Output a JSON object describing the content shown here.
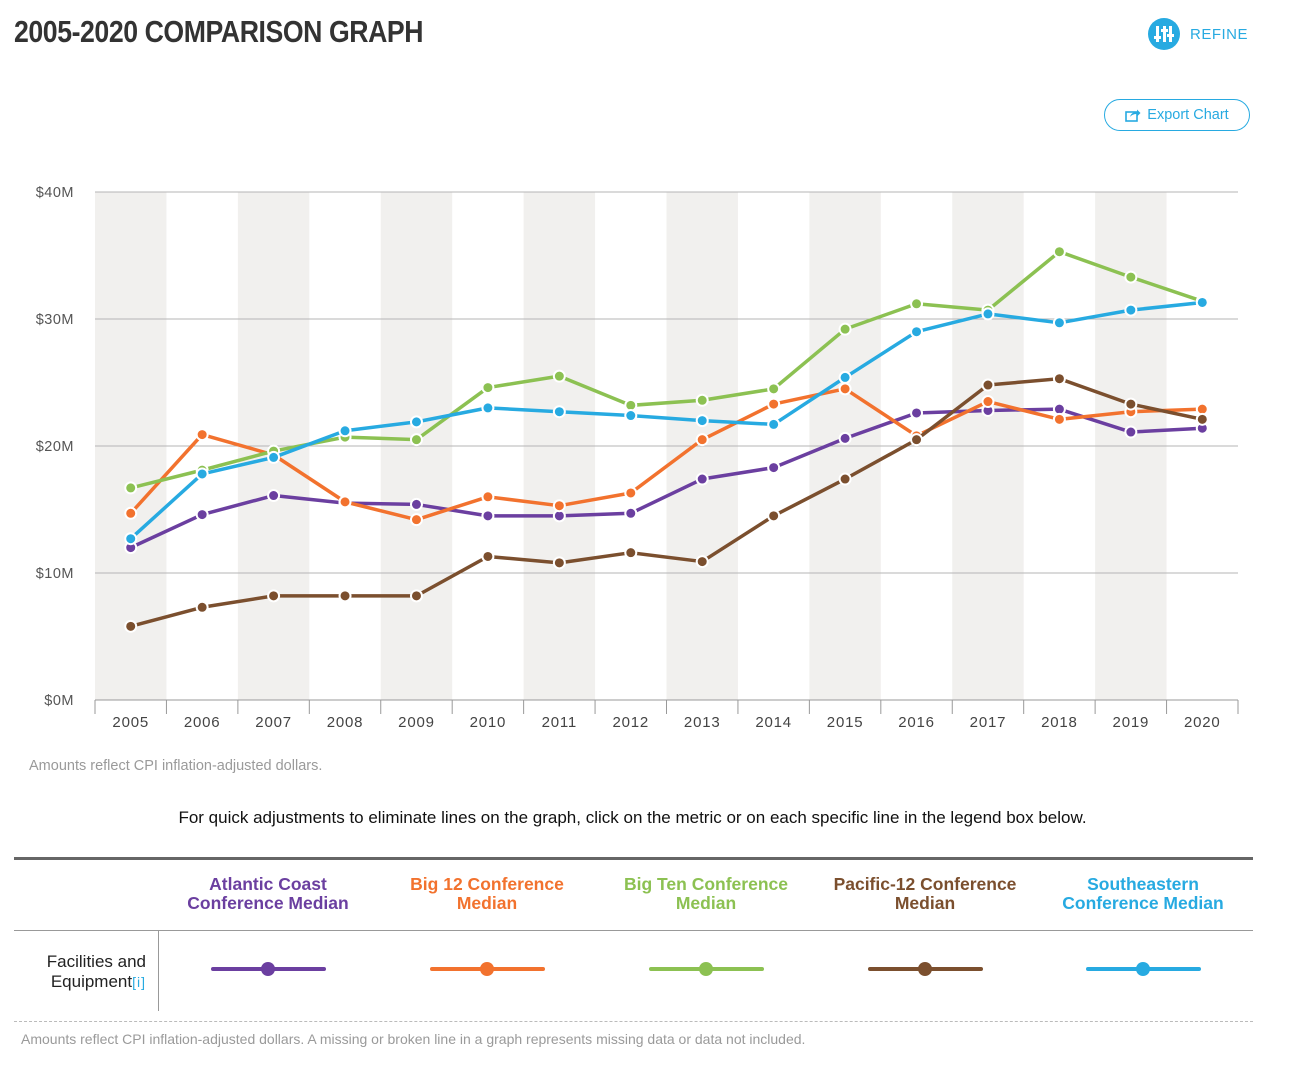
{
  "title": "2005-2020 COMPARISON GRAPH",
  "refine_label": "REFINE",
  "export_label": "Export Chart",
  "chart_data": {
    "type": "line",
    "x": [
      "2005",
      "2006",
      "2007",
      "2008",
      "2009",
      "2010",
      "2011",
      "2012",
      "2013",
      "2014",
      "2015",
      "2016",
      "2017",
      "2018",
      "2019",
      "2020"
    ],
    "ylim": [
      0,
      40
    ],
    "yticks": [
      "$0M",
      "$10M",
      "$20M",
      "$30M",
      "$40M"
    ],
    "grid": true,
    "series": [
      {
        "name": "Atlantic Coast Conference Median",
        "color": "#6b3fa0",
        "values": [
          12.0,
          14.6,
          16.1,
          15.5,
          15.4,
          14.5,
          14.5,
          14.7,
          17.4,
          18.3,
          20.6,
          22.6,
          22.8,
          22.9,
          21.1,
          21.4
        ]
      },
      {
        "name": "Big 12 Conference Median",
        "color": "#f2722e",
        "values": [
          14.7,
          20.9,
          19.3,
          15.6,
          14.2,
          16.0,
          15.3,
          16.3,
          20.5,
          23.3,
          24.5,
          20.8,
          23.5,
          22.1,
          22.7,
          22.9
        ]
      },
      {
        "name": "Big Ten Conference Median",
        "color": "#8cc152",
        "values": [
          16.7,
          18.1,
          19.6,
          20.7,
          20.5,
          24.6,
          25.5,
          23.2,
          23.6,
          24.5,
          29.2,
          31.2,
          30.7,
          35.3,
          33.3,
          31.4
        ]
      },
      {
        "name": "Pacific-12 Conference Median",
        "color": "#7b4f2e",
        "values": [
          5.8,
          7.3,
          8.2,
          8.2,
          8.2,
          11.3,
          10.8,
          11.6,
          10.9,
          14.5,
          17.4,
          20.5,
          24.8,
          25.3,
          23.3,
          22.1
        ]
      },
      {
        "name": "Southeastern Conference Median",
        "color": "#27aae1",
        "values": [
          12.7,
          17.8,
          19.1,
          21.2,
          21.9,
          23.0,
          22.7,
          22.4,
          22.0,
          21.7,
          25.4,
          29.0,
          30.4,
          29.7,
          30.7,
          31.3
        ]
      }
    ]
  },
  "note_chart": "Amounts reflect CPI inflation-adjusted dollars.",
  "instructions": "For quick adjustments to eliminate lines on the graph, click on the metric or on each specific line in the legend box below.",
  "legend": {
    "headers": [
      {
        "line1": "Atlantic Coast",
        "line2": "Conference Median"
      },
      {
        "line1": "Big 12 Conference",
        "line2": "Median"
      },
      {
        "line1": "Big Ten Conference",
        "line2": "Median"
      },
      {
        "line1": "Pacific-12 Conference",
        "line2": "Median"
      },
      {
        "line1": "Southeastern",
        "line2": "Conference Median"
      }
    ],
    "metric_line1": "Facilities and",
    "metric_line2": "Equipment",
    "metric_info": "[i]"
  },
  "note_bottom": "Amounts reflect CPI inflation-adjusted dollars. A missing or broken line in a graph represents missing data or data not included."
}
